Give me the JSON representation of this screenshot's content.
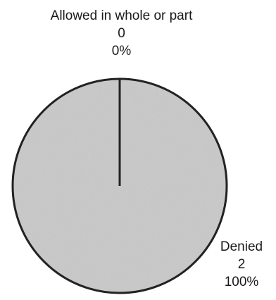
{
  "chart_data": {
    "type": "pie",
    "series": [
      {
        "name": "Allowed in whole or part",
        "value": 0,
        "percent": "0%"
      },
      {
        "name": "Denied",
        "value": 2,
        "percent": "100%"
      }
    ],
    "colors": {
      "fill": "#c9c9c9",
      "outline": "#222222"
    }
  }
}
